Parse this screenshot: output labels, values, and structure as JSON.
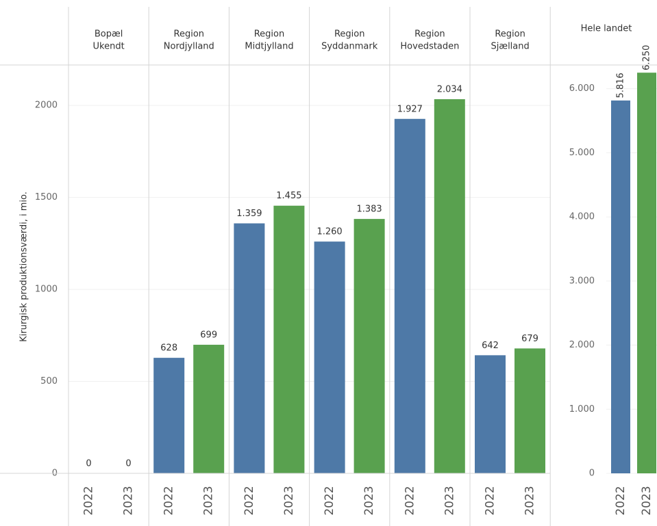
{
  "chart_data": [
    {
      "type": "bar",
      "y_label": "Kirurgisk produktionsværdi, i mio.",
      "colors": [
        "#4e79a7",
        "#59a14f"
      ],
      "ylim": [
        0,
        2220
      ],
      "yticks": [
        0,
        500,
        1000,
        1500,
        2000
      ],
      "grid": true,
      "panels": [
        {
          "title": [
            "Bopæl",
            "Ukendt"
          ],
          "categories": [
            "2022",
            "2023"
          ],
          "values": [
            0,
            0
          ],
          "value_labels": [
            "0",
            "0"
          ]
        },
        {
          "title": [
            "Region",
            "Nordjylland"
          ],
          "categories": [
            "2022",
            "2023"
          ],
          "values": [
            628,
            699
          ],
          "value_labels": [
            "628",
            "699"
          ]
        },
        {
          "title": [
            "Region",
            "Midtjylland"
          ],
          "categories": [
            "2022",
            "2023"
          ],
          "values": [
            1359,
            1455
          ],
          "value_labels": [
            "1.359",
            "1.455"
          ]
        },
        {
          "title": [
            "Region",
            "Syddanmark"
          ],
          "categories": [
            "2022",
            "2023"
          ],
          "values": [
            1260,
            1383
          ],
          "value_labels": [
            "1.260",
            "1.383"
          ]
        },
        {
          "title": [
            "Region",
            "Hovedstaden"
          ],
          "categories": [
            "2022",
            "2023"
          ],
          "values": [
            1927,
            2034
          ],
          "value_labels": [
            "1.927",
            "2.034"
          ]
        },
        {
          "title": [
            "Region",
            "Sjælland"
          ],
          "categories": [
            "2022",
            "2023"
          ],
          "values": [
            642,
            679
          ],
          "value_labels": [
            "642",
            "679"
          ]
        }
      ]
    },
    {
      "type": "bar",
      "title": "Hele landet",
      "colors": [
        "#4e79a7",
        "#59a14f"
      ],
      "ylim": [
        0,
        6370
      ],
      "yticks": [
        0,
        {
          "value": 1000,
          "label": "1.000"
        },
        {
          "value": 2000,
          "label": "2.000"
        },
        {
          "value": 3000,
          "label": "3.000"
        },
        {
          "value": 4000,
          "label": "4.000"
        },
        {
          "value": 5000,
          "label": "5.000"
        },
        {
          "value": 6000,
          "label": "6.000"
        }
      ],
      "grid": true,
      "categories": [
        "2022",
        "2023"
      ],
      "values": [
        5816,
        6250
      ],
      "value_labels": [
        "5.816",
        "6.250"
      ]
    }
  ]
}
